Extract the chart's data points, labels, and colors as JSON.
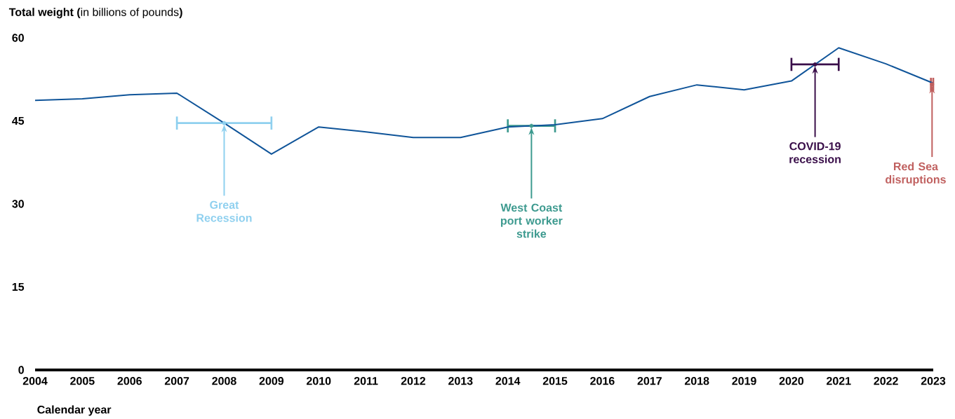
{
  "chart_data": {
    "type": "line",
    "ylabel": "**Total weight (**in billions of pounds**)**",
    "xlabel": "Calendar year",
    "x": [
      2004,
      2005,
      2006,
      2007,
      2008,
      2009,
      2010,
      2011,
      2012,
      2013,
      2014,
      2015,
      2016,
      2017,
      2018,
      2019,
      2020,
      2021,
      2022,
      2023
    ],
    "series": [
      {
        "color": "#0f5499",
        "values": [
          48.7,
          49.0,
          49.7,
          50.0,
          44.6,
          39.0,
          43.9,
          43.0,
          42.0,
          42.0,
          43.9,
          44.3,
          45.4,
          49.4,
          51.5,
          50.6,
          52.2,
          58.2,
          55.3,
          51.8
        ]
      },
      {
        "type": "scatter",
        "x": [
          2008,
          2014.5,
          2020.5,
          2022.975
        ],
        "values": [
          44.6,
          44.1,
          55.2,
          51.6
        ],
        "xerrors": [
          1,
          0.5,
          0.5,
          0.025
        ],
        "colors": [
          "#8fd0ef",
          "#3d9a8f",
          "#3a0f4a",
          "#c0605f"
        ]
      }
    ],
    "xlim": [
      2004,
      2023
    ],
    "xticks": [
      2004,
      2005,
      2006,
      2007,
      2008,
      2009,
      2010,
      2011,
      2012,
      2013,
      2014,
      2015,
      2016,
      2017,
      2018,
      2019,
      2020,
      2021,
      2022,
      2023
    ],
    "ylim": [
      0,
      60
    ],
    "yticks": [
      0,
      15,
      30,
      45,
      60
    ],
    "grid": false,
    "marker": "none",
    "line_style": "solid",
    "annotations": [
      {
        "text": "Great Recession",
        "x": 2008,
        "y": 44.3
      },
      {
        "text": "West Coast port worker strike",
        "x": 2014.5,
        "y": 43.8
      },
      {
        "text": "COVID-19 recession",
        "x": 2020.5,
        "y": 54.9
      },
      {
        "text": "Red Sea disruptions",
        "x": 2022.975,
        "y": 51.3
      }
    ]
  }
}
